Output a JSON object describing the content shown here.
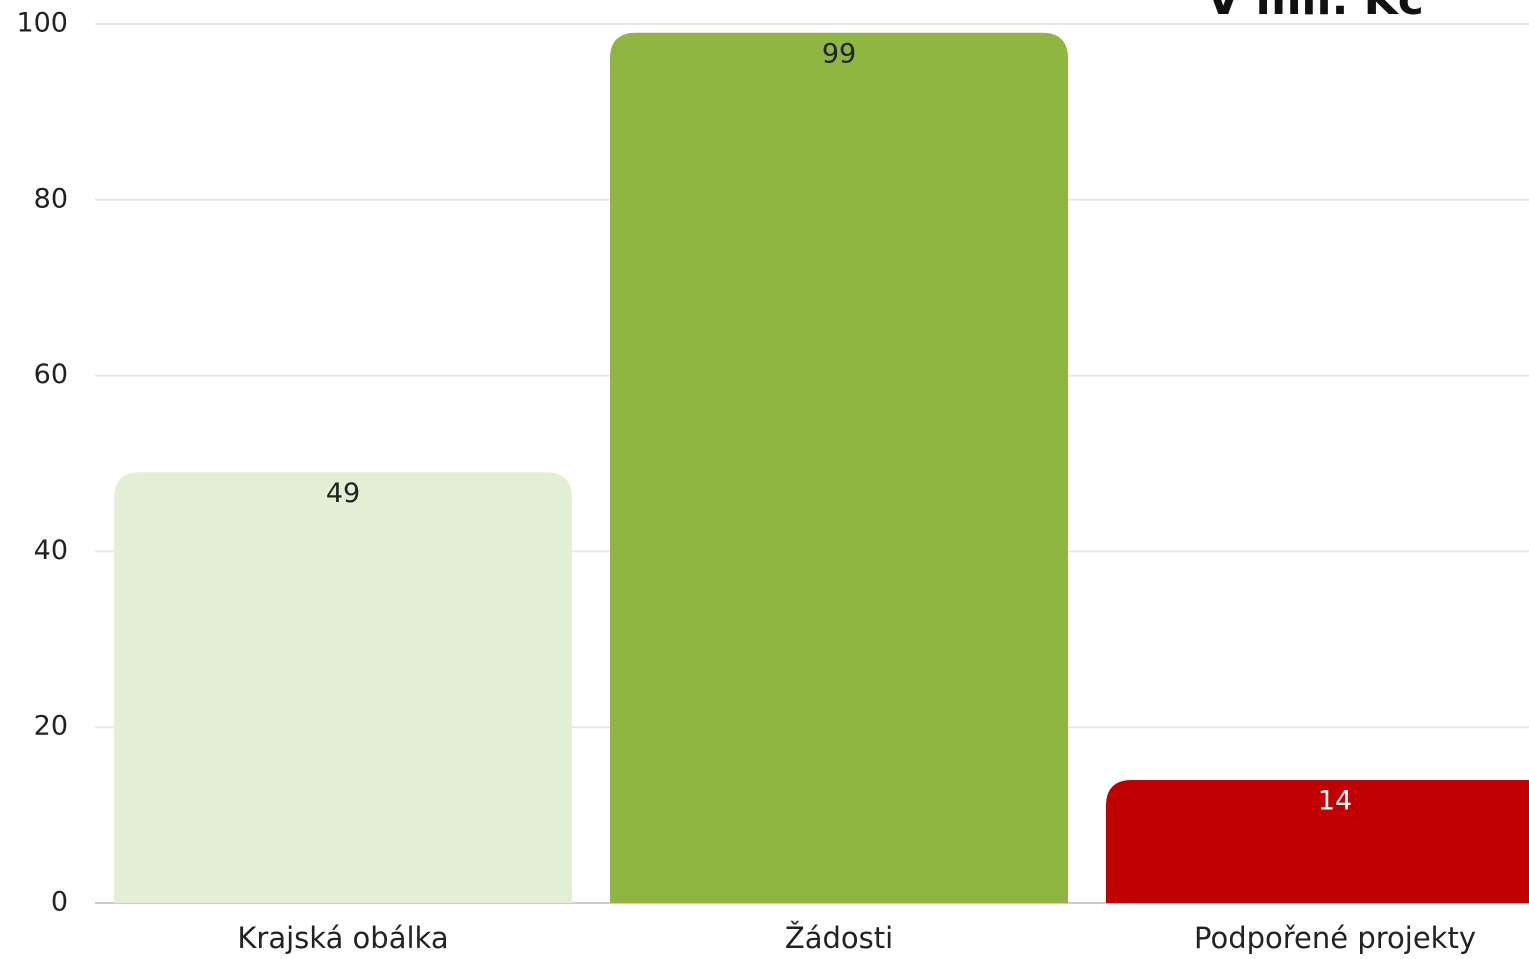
{
  "chart_data": {
    "type": "bar",
    "title": "V mil. Kč",
    "categories": [
      "Krajská obálka",
      "Žádosti",
      "Podpořené projekty"
    ],
    "values": [
      49,
      99,
      14
    ],
    "colors": [
      "#e2efd4",
      "#8fb641",
      "#c00000"
    ],
    "ylim": [
      0,
      100
    ],
    "yticks": [
      0,
      20,
      40,
      60,
      80,
      100
    ],
    "grid": true
  }
}
